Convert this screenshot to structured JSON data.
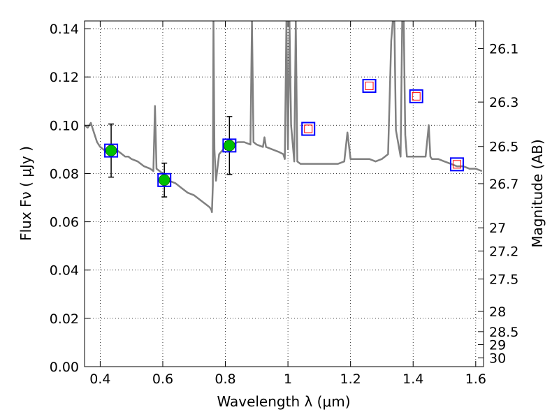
{
  "chart_data": {
    "type": "line",
    "xlabel": "Wavelength  λ (μm)",
    "ylabel": "Flux  Fν  ( μJy )",
    "ylabel_right": "Magnitude (AB)",
    "xlim": [
      0.35,
      1.625
    ],
    "ylim": [
      0.0,
      0.1432
    ],
    "grid": true,
    "x_ticks": [
      0.4,
      0.6,
      0.8,
      1.0,
      1.2,
      1.4,
      1.6
    ],
    "x_tick_labels": [
      "0.4",
      "0.6",
      "0.8",
      "1",
      "1.2",
      "1.4",
      "1.6"
    ],
    "y_ticks": [
      0.0,
      0.02,
      0.04,
      0.06,
      0.08,
      0.1,
      0.12,
      0.14
    ],
    "y_tick_labels": [
      "0.00",
      "0.02",
      "0.04",
      "0.06",
      "0.08",
      "0.10",
      "0.12",
      "0.14"
    ],
    "right_ticks": [
      {
        "label": "26.1",
        "flux": 0.1318
      },
      {
        "label": "26.3",
        "flux": 0.1096
      },
      {
        "label": "26.5",
        "flux": 0.0912
      },
      {
        "label": "26.7",
        "flux": 0.0758
      },
      {
        "label": "27",
        "flux": 0.0575
      },
      {
        "label": "27.2",
        "flux": 0.0479
      },
      {
        "label": "27.5",
        "flux": 0.0363
      },
      {
        "label": "28",
        "flux": 0.0229
      },
      {
        "label": "28.5",
        "flux": 0.0145
      },
      {
        "label": "29",
        "flux": 0.0091
      },
      {
        "label": "30",
        "flux": 0.0036
      }
    ],
    "series": [
      {
        "type": "line",
        "color": "#808080",
        "x": [
          0.35,
          0.36,
          0.37,
          0.38,
          0.39,
          0.4,
          0.41,
          0.42,
          0.43,
          0.44,
          0.45,
          0.46,
          0.47,
          0.48,
          0.49,
          0.5,
          0.52,
          0.54,
          0.56,
          0.57,
          0.575,
          0.58,
          0.6,
          0.62,
          0.64,
          0.66,
          0.68,
          0.7,
          0.72,
          0.74,
          0.75,
          0.755,
          0.757,
          0.76,
          0.762,
          0.765,
          0.77,
          0.78,
          0.8,
          0.82,
          0.84,
          0.86,
          0.88,
          0.885,
          0.89,
          0.9,
          0.92,
          0.925,
          0.93,
          0.95,
          0.97,
          0.985,
          0.99,
          0.995,
          1.0,
          1.005,
          1.01,
          1.02,
          1.025,
          1.03,
          1.04,
          1.06,
          1.08,
          1.1,
          1.12,
          1.14,
          1.16,
          1.18,
          1.19,
          1.2,
          1.21,
          1.22,
          1.24,
          1.26,
          1.28,
          1.3,
          1.32,
          1.33,
          1.335,
          1.34,
          1.345,
          1.36,
          1.365,
          1.37,
          1.375,
          1.38,
          1.4,
          1.42,
          1.44,
          1.45,
          1.455,
          1.46,
          1.48,
          1.5,
          1.52,
          1.54,
          1.56,
          1.58,
          1.6,
          1.62
        ],
        "y": [
          0.1,
          0.099,
          0.101,
          0.097,
          0.093,
          0.091,
          0.09,
          0.089,
          0.088,
          0.09,
          0.09,
          0.089,
          0.088,
          0.087,
          0.087,
          0.086,
          0.085,
          0.083,
          0.082,
          0.081,
          0.108,
          0.082,
          0.08,
          0.077,
          0.076,
          0.074,
          0.072,
          0.071,
          0.069,
          0.067,
          0.066,
          0.065,
          0.064,
          0.075,
          0.143,
          0.09,
          0.077,
          0.088,
          0.091,
          0.092,
          0.093,
          0.093,
          0.092,
          0.143,
          0.093,
          0.092,
          0.091,
          0.095,
          0.091,
          0.09,
          0.089,
          0.088,
          0.086,
          0.143,
          0.09,
          0.143,
          0.1,
          0.085,
          0.143,
          0.085,
          0.084,
          0.084,
          0.084,
          0.084,
          0.084,
          0.084,
          0.084,
          0.085,
          0.097,
          0.086,
          0.086,
          0.086,
          0.086,
          0.086,
          0.085,
          0.086,
          0.088,
          0.135,
          0.143,
          0.143,
          0.098,
          0.087,
          0.143,
          0.143,
          0.096,
          0.087,
          0.087,
          0.087,
          0.087,
          0.1,
          0.087,
          0.086,
          0.086,
          0.085,
          0.084,
          0.083,
          0.083,
          0.082,
          0.082,
          0.081
        ]
      },
      {
        "type": "scatter",
        "marker": "circle",
        "color": "#00c000",
        "x": [
          0.435,
          0.605,
          0.813
        ],
        "y": [
          0.0895,
          0.0773,
          0.0916
        ],
        "yerr": [
          0.011,
          0.007,
          0.012
        ]
      },
      {
        "type": "scatter",
        "marker": "square",
        "color": "#0000ff",
        "x": [
          0.435,
          0.605,
          0.813,
          1.065,
          1.26,
          1.41,
          1.54
        ],
        "y": [
          0.0895,
          0.0773,
          0.0916,
          0.0985,
          0.1163,
          0.112,
          0.0838
        ]
      },
      {
        "type": "scatter",
        "marker": "square-small",
        "color": "#ff0000",
        "x": [
          1.065,
          1.26,
          1.41,
          1.54
        ],
        "y": [
          0.0985,
          0.1163,
          0.112,
          0.0838
        ]
      }
    ]
  }
}
